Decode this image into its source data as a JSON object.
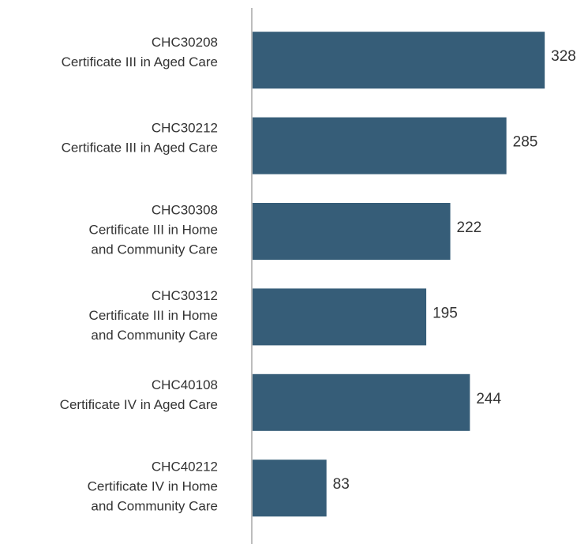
{
  "chart_data": {
    "type": "hbar",
    "categories": [
      [
        "CHC30208",
        "Certificate III in Aged Care"
      ],
      [
        "CHC30212",
        "Certificate III in Aged Care"
      ],
      [
        "CHC30308",
        "Certificate III in Home",
        "and Community Care"
      ],
      [
        "CHC30312",
        "Certificate III in Home",
        "and Community Care"
      ],
      [
        "CHC40108",
        "Certificate IV in Aged Care"
      ],
      [
        "CHC40212",
        "Certificate IV in Home",
        "and Community Care"
      ]
    ],
    "values": [
      328,
      285,
      222,
      195,
      244,
      83
    ],
    "color": "#365d78",
    "xlim": [
      0,
      350
    ]
  }
}
